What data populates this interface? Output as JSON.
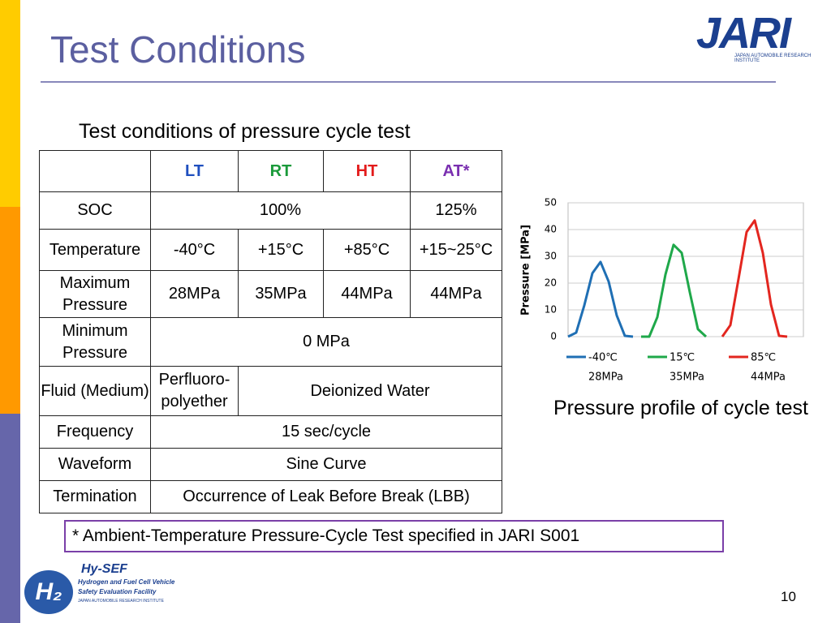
{
  "header": {
    "title": "Test Conditions",
    "logo": "JARI",
    "logo_subtitle": "JAPAN AUTOMOBILE RESEARCH INSTITUTE"
  },
  "table": {
    "caption": "Test conditions of pressure cycle test",
    "columns": [
      "LT",
      "RT",
      "HT",
      "AT*"
    ],
    "rows": [
      {
        "label": "SOC",
        "cells": [
          "100%",
          "125%"
        ]
      },
      {
        "label": "Temperature",
        "cells": [
          "-40°C",
          "+15°C",
          "+85°C",
          "+15~25°C"
        ]
      },
      {
        "label": "Maximum Pressure",
        "cells": [
          "28MPa",
          "35MPa",
          "44MPa",
          "44MPa"
        ]
      },
      {
        "label": "Minimum Pressure",
        "cells": [
          "0 MPa"
        ]
      },
      {
        "label": "Fluid (Medium)",
        "cells": [
          "Perfluoro-polyether",
          "Deionized Water"
        ]
      },
      {
        "label": "Frequency",
        "cells": [
          "15 sec/cycle"
        ]
      },
      {
        "label": "Waveform",
        "cells": [
          "Sine Curve"
        ]
      },
      {
        "label": "Termination",
        "cells": [
          "Occurrence of  Leak Before Break (LBB)"
        ]
      }
    ]
  },
  "chart_data": {
    "type": "line",
    "title": "Pressure profile of cycle test",
    "y_label": "Pressure [MPa]",
    "categories": [
      null,
      null,
      null,
      null,
      null,
      null,
      null,
      null,
      null,
      null,
      null,
      null,
      null,
      null,
      null,
      null,
      null,
      null,
      null,
      null,
      null,
      null,
      null,
      null,
      null,
      null,
      null,
      null,
      null,
      null
    ],
    "series": [
      {
        "name": "-40℃",
        "sublabel": "28MPa",
        "color": "#1f6fb4",
        "values": [
          0,
          1.5,
          11.7,
          23.7,
          27.9,
          20.6,
          7.9,
          0.3,
          0,
          null,
          null,
          null,
          null,
          null,
          null,
          null,
          null,
          null,
          null,
          null,
          null,
          null,
          null,
          null,
          null,
          null,
          null,
          null,
          null,
          null
        ]
      },
      {
        "name": "15℃",
        "sublabel": "35MPa",
        "color": "#1fa84a",
        "values": [
          null,
          null,
          null,
          null,
          null,
          null,
          null,
          null,
          null,
          0,
          0,
          7.3,
          23.2,
          34.3,
          31.3,
          16.6,
          2.8,
          0,
          null,
          null,
          null,
          null,
          null,
          null,
          null,
          null,
          null,
          null,
          null,
          null
        ]
      },
      {
        "name": "85℃",
        "sublabel": "44MPa",
        "color": "#e3261f",
        "values": [
          null,
          null,
          null,
          null,
          null,
          null,
          null,
          null,
          null,
          null,
          null,
          null,
          null,
          null,
          null,
          null,
          null,
          null,
          null,
          0,
          4.3,
          21.5,
          39.1,
          43.4,
          31.3,
          12,
          0.3,
          0,
          null,
          null
        ]
      }
    ],
    "ylim": [
      0,
      50
    ],
    "yticks": [
      0,
      10,
      20,
      30,
      40,
      50
    ],
    "grid": true
  },
  "footnote": "* Ambient-Temperature Pressure-Cycle Test specified in JARI S001",
  "footer": {
    "logo_title": "Hy-SEF",
    "logo_lines": [
      "Hydrogen and Fuel Cell Vehicle",
      "Safety Evaluation Facility",
      "JAPAN AUTOMOBILE RESEARCH INSTITUTE"
    ],
    "page_number": "10"
  }
}
